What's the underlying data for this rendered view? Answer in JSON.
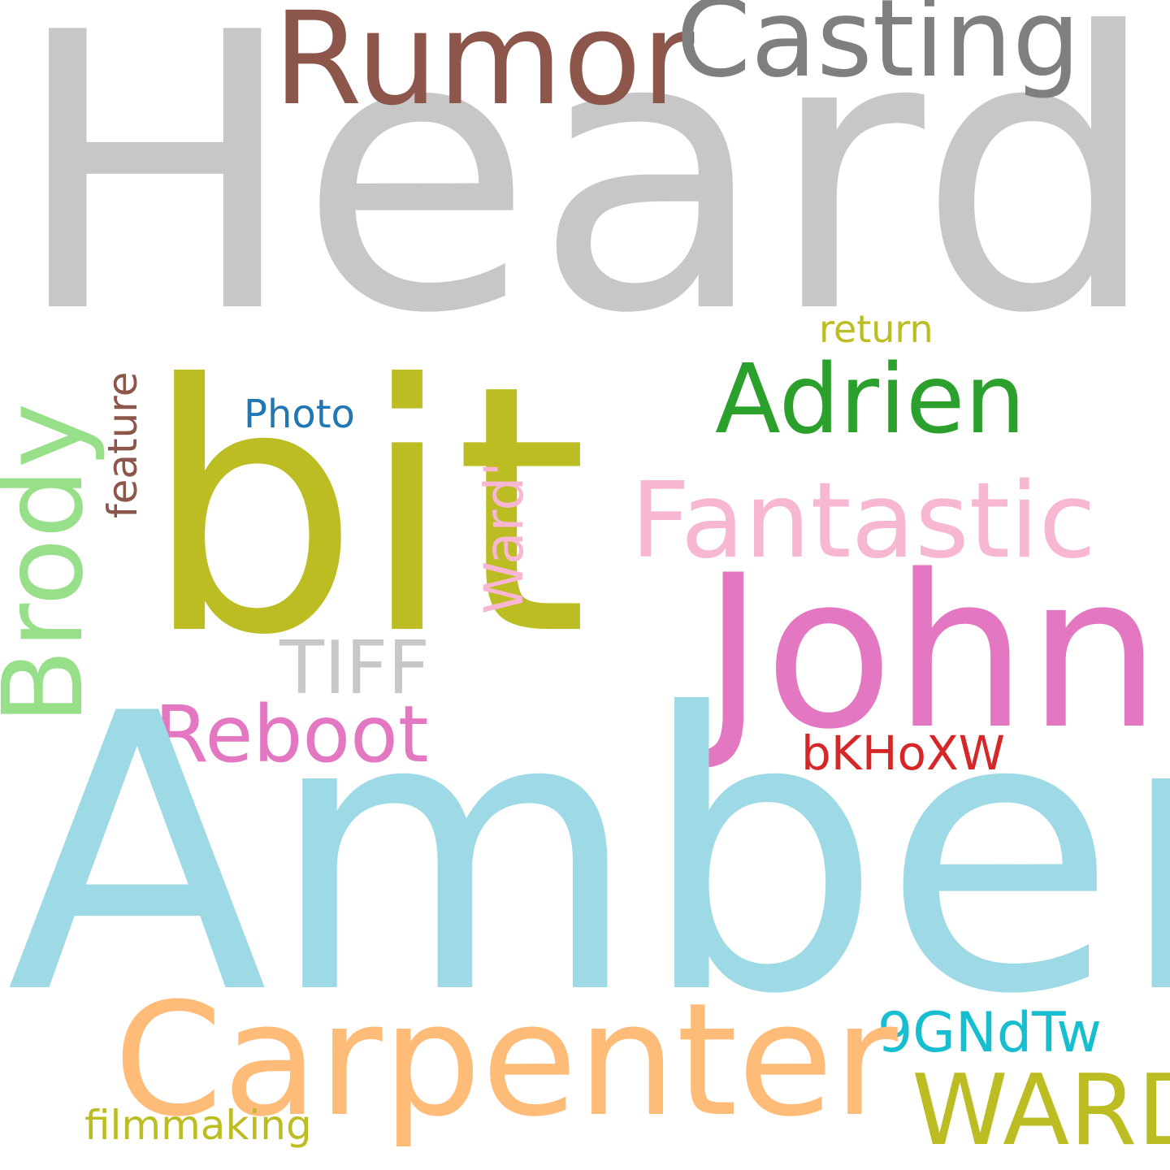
{
  "words": {
    "heard": {
      "text": "Heard",
      "color": "#c7c7c7"
    },
    "amber": {
      "text": "Amber",
      "color": "#9edae5"
    },
    "bit": {
      "text": "bit",
      "color": "#bcbd22"
    },
    "rumor": {
      "text": "Rumor",
      "color": "#8c564b"
    },
    "casting": {
      "text": "Casting",
      "color": "#7f7f7f"
    },
    "john": {
      "text": "John",
      "color": "#e377c2"
    },
    "carpenter": {
      "text": "Carpenter",
      "color": "#ffbb78"
    },
    "fantastic": {
      "text": "Fantastic",
      "color": "#f7b6d2"
    },
    "adrien": {
      "text": "Adrien",
      "color": "#2ca02c"
    },
    "brody": {
      "text": "Brody",
      "color": "#98df8a"
    },
    "ward_caps": {
      "text": "WARD",
      "color": "#bcbd22"
    },
    "reboot": {
      "text": "Reboot",
      "color": "#e377c2"
    },
    "tiff": {
      "text": "TIFF",
      "color": "#c7c7c7"
    },
    "ward_quote": {
      "text": "Ward'",
      "color": "#f7b6d2"
    },
    "gndtw": {
      "text": "9GNdTw",
      "color": "#17becf"
    },
    "feature": {
      "text": "feature",
      "color": "#8c564b"
    },
    "photo": {
      "text": "Photo",
      "color": "#1f77b4"
    },
    "return": {
      "text": "return",
      "color": "#bcbd22"
    },
    "bkhoxw": {
      "text": "bKHoXW",
      "color": "#d62728"
    },
    "filmmaking": {
      "text": "filmmaking",
      "color": "#bcbd22"
    }
  }
}
